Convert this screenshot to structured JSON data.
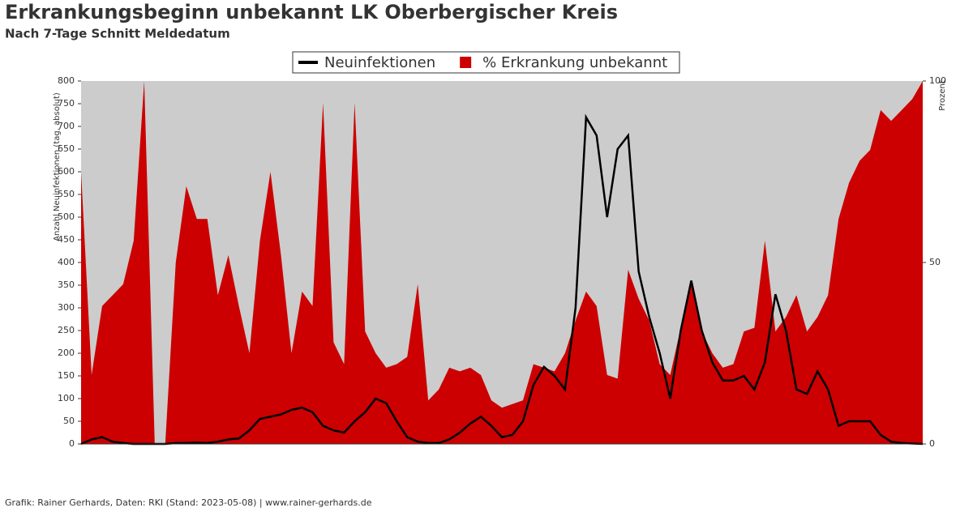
{
  "chart_data": {
    "type": "line-area",
    "title": "Erkrankungsbeginn unbekannt LK Oberbergischer Kreis",
    "subtitle": "Nach 7-Tage Schnitt Meldedatum",
    "footer": "Grafik: Rainer Gerhards, Daten: RKI (Stand: 2023-05-08) | www.rainer-gerhards.de",
    "ylabel": "Anzahl Neuinfektionen (tag, absolut)",
    "y2label": "Prozent",
    "categories": [
      null,
      null,
      null,
      null,
      null,
      null,
      null,
      null,
      null,
      null,
      null,
      null,
      null,
      null,
      null,
      null,
      null,
      null,
      null,
      null,
      null,
      null,
      null,
      null,
      null,
      null,
      null,
      null,
      null,
      null,
      null,
      null,
      null,
      null,
      null,
      null,
      null,
      null,
      null,
      null,
      null,
      null,
      null,
      null,
      null,
      null,
      null,
      null,
      null,
      null,
      null,
      null,
      null,
      null,
      null,
      null,
      null,
      null,
      null,
      null,
      null,
      null,
      null,
      null,
      null,
      null,
      null,
      null,
      null,
      null,
      null,
      null,
      null,
      null,
      null,
      null,
      null,
      null,
      null,
      null,
      null
    ],
    "series": [
      {
        "name": "Neuinfektionen",
        "color": "#000000",
        "kind": "line",
        "values": [
          0,
          10,
          15,
          5,
          2,
          0,
          0,
          0,
          0,
          2,
          2,
          3,
          2,
          5,
          10,
          12,
          30,
          55,
          60,
          65,
          75,
          80,
          70,
          40,
          30,
          25,
          50,
          70,
          100,
          90,
          50,
          15,
          5,
          2,
          2,
          10,
          25,
          45,
          60,
          40,
          15,
          20,
          50,
          130,
          170,
          150,
          120,
          300,
          720,
          680,
          500,
          650,
          680,
          380,
          280,
          200,
          100,
          250,
          360,
          250,
          180,
          140,
          140,
          150,
          120,
          180,
          330,
          250,
          120,
          110,
          160,
          120,
          40,
          50,
          50,
          50,
          20,
          5,
          2,
          1,
          0
        ]
      },
      {
        "name": "% Erkrankung unbekannt",
        "color": "#cc0000",
        "kind": "area",
        "axis": "y2",
        "values": [
          75,
          19,
          38,
          41,
          44,
          56,
          100,
          0,
          0,
          50,
          71,
          62,
          62,
          41,
          52,
          38,
          25,
          56,
          75,
          52,
          25,
          42,
          38,
          94,
          28,
          22,
          94,
          31,
          25,
          21,
          22,
          24,
          44,
          12,
          15,
          21,
          20,
          21,
          19,
          12,
          10,
          11,
          12,
          22,
          21,
          20,
          25,
          34,
          42,
          38,
          19,
          18,
          48,
          40,
          34,
          22,
          19,
          32,
          44,
          31,
          25,
          21,
          22,
          31,
          32,
          56,
          31,
          35,
          41,
          31,
          35,
          41,
          62,
          72,
          78,
          81,
          92,
          89,
          92,
          95,
          100
        ]
      }
    ],
    "ylim": [
      0,
      800
    ],
    "yticks": [
      0,
      50,
      100,
      150,
      200,
      250,
      300,
      350,
      400,
      450,
      500,
      550,
      600,
      650,
      700,
      750,
      800
    ],
    "y2lim": [
      0,
      100
    ],
    "y2ticks": [
      0,
      50,
      100
    ],
    "background": "#cccccc"
  }
}
